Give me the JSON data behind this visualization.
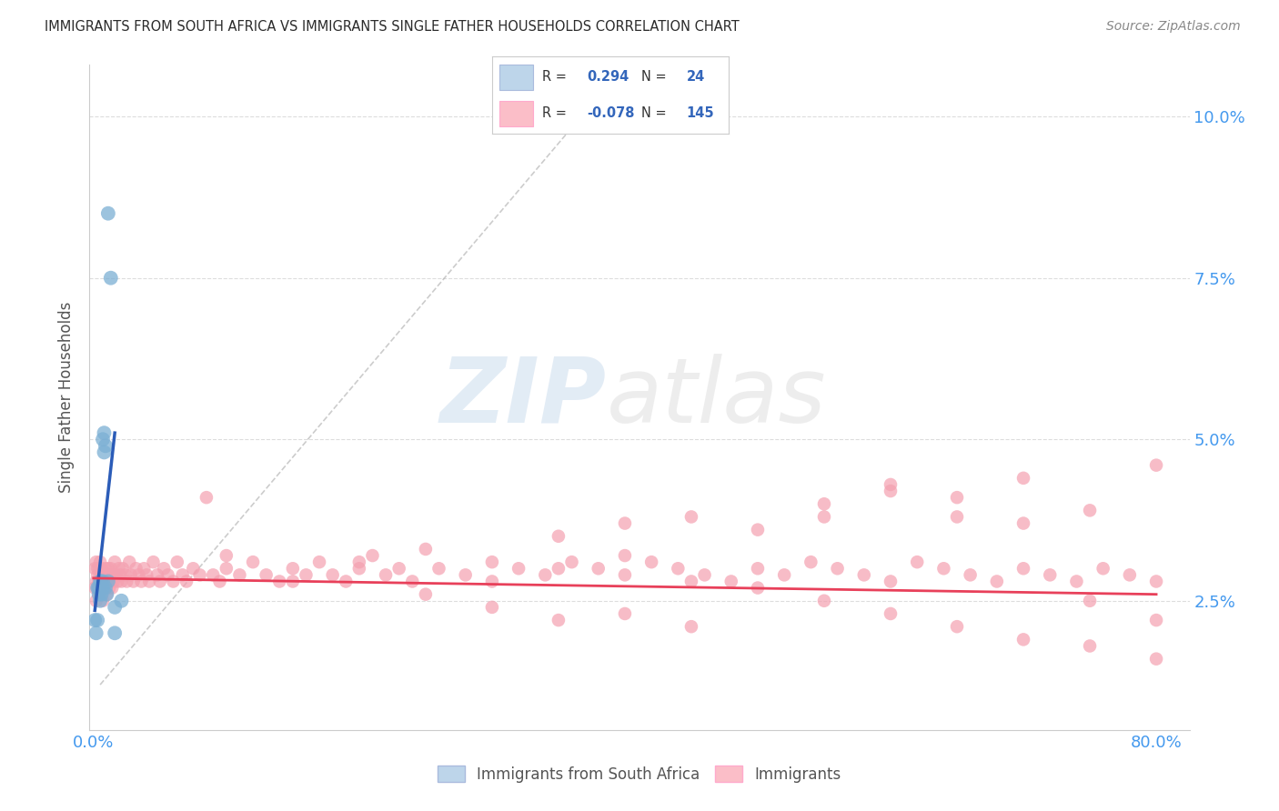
{
  "title": "IMMIGRANTS FROM SOUTH AFRICA VS IMMIGRANTS SINGLE FATHER HOUSEHOLDS CORRELATION CHART",
  "source": "Source: ZipAtlas.com",
  "ylabel": "Single Father Households",
  "blue_R": 0.294,
  "blue_N": 24,
  "pink_R": -0.078,
  "pink_N": 145,
  "blue_dot_color": "#7BAFD4",
  "pink_dot_color": "#F4A0B0",
  "blue_legend_color": "#BDD5EA",
  "pink_legend_color": "#FBBEC8",
  "trend_blue_color": "#2B5CB8",
  "trend_pink_color": "#E8405A",
  "title_color": "#2B2B2B",
  "axis_color": "#4499EE",
  "legend_text_color": "#3366BB",
  "xlim": [
    -0.003,
    0.825
  ],
  "ylim": [
    0.005,
    0.108
  ],
  "ytick_vals": [
    0.025,
    0.05,
    0.075,
    0.1
  ],
  "ytick_labels": [
    "2.5%",
    "5.0%",
    "7.5%",
    "10.0%"
  ],
  "xtick_vals": [
    0.0,
    0.1,
    0.2,
    0.3,
    0.4,
    0.5,
    0.6,
    0.7,
    0.8
  ],
  "blue_x": [
    0.001,
    0.002,
    0.003,
    0.003,
    0.004,
    0.004,
    0.005,
    0.005,
    0.006,
    0.006,
    0.007,
    0.007,
    0.007,
    0.008,
    0.008,
    0.009,
    0.009,
    0.01,
    0.011,
    0.011,
    0.013,
    0.016,
    0.016,
    0.021
  ],
  "blue_y": [
    0.022,
    0.02,
    0.027,
    0.022,
    0.026,
    0.027,
    0.025,
    0.028,
    0.026,
    0.028,
    0.027,
    0.028,
    0.05,
    0.048,
    0.051,
    0.049,
    0.027,
    0.026,
    0.028,
    0.085,
    0.075,
    0.024,
    0.02,
    0.025
  ],
  "pink_x": [
    0.001,
    0.001,
    0.002,
    0.002,
    0.002,
    0.003,
    0.003,
    0.003,
    0.004,
    0.004,
    0.004,
    0.005,
    0.005,
    0.005,
    0.006,
    0.006,
    0.006,
    0.007,
    0.007,
    0.008,
    0.008,
    0.009,
    0.009,
    0.01,
    0.01,
    0.011,
    0.011,
    0.012,
    0.012,
    0.013,
    0.013,
    0.014,
    0.015,
    0.015,
    0.016,
    0.017,
    0.018,
    0.019,
    0.02,
    0.021,
    0.022,
    0.024,
    0.025,
    0.027,
    0.028,
    0.03,
    0.032,
    0.034,
    0.036,
    0.038,
    0.04,
    0.042,
    0.045,
    0.048,
    0.05,
    0.053,
    0.056,
    0.06,
    0.063,
    0.067,
    0.07,
    0.075,
    0.08,
    0.085,
    0.09,
    0.095,
    0.1,
    0.11,
    0.12,
    0.13,
    0.14,
    0.15,
    0.16,
    0.17,
    0.18,
    0.19,
    0.2,
    0.21,
    0.22,
    0.23,
    0.24,
    0.26,
    0.28,
    0.3,
    0.32,
    0.34,
    0.36,
    0.38,
    0.4,
    0.42,
    0.44,
    0.46,
    0.48,
    0.5,
    0.52,
    0.54,
    0.56,
    0.58,
    0.6,
    0.62,
    0.64,
    0.66,
    0.68,
    0.7,
    0.72,
    0.74,
    0.76,
    0.78,
    0.8,
    0.55,
    0.6,
    0.65,
    0.7,
    0.75,
    0.8,
    0.35,
    0.4,
    0.45,
    0.5,
    0.55,
    0.6,
    0.65,
    0.7,
    0.75,
    0.8,
    0.25,
    0.3,
    0.35,
    0.4,
    0.45,
    0.5,
    0.55,
    0.6,
    0.65,
    0.7,
    0.75,
    0.8,
    0.1,
    0.15,
    0.2,
    0.25,
    0.3,
    0.35,
    0.4,
    0.45
  ],
  "pink_y": [
    0.03,
    0.027,
    0.031,
    0.028,
    0.025,
    0.029,
    0.027,
    0.03,
    0.028,
    0.026,
    0.03,
    0.029,
    0.027,
    0.031,
    0.028,
    0.026,
    0.03,
    0.028,
    0.025,
    0.029,
    0.027,
    0.03,
    0.028,
    0.029,
    0.026,
    0.028,
    0.03,
    0.027,
    0.029,
    0.028,
    0.03,
    0.027,
    0.029,
    0.028,
    0.031,
    0.029,
    0.028,
    0.03,
    0.029,
    0.028,
    0.03,
    0.029,
    0.028,
    0.031,
    0.029,
    0.028,
    0.03,
    0.029,
    0.028,
    0.03,
    0.029,
    0.028,
    0.031,
    0.029,
    0.028,
    0.03,
    0.029,
    0.028,
    0.031,
    0.029,
    0.028,
    0.03,
    0.029,
    0.041,
    0.029,
    0.028,
    0.03,
    0.029,
    0.031,
    0.029,
    0.028,
    0.03,
    0.029,
    0.031,
    0.029,
    0.028,
    0.03,
    0.032,
    0.029,
    0.03,
    0.028,
    0.03,
    0.029,
    0.028,
    0.03,
    0.029,
    0.031,
    0.03,
    0.029,
    0.031,
    0.03,
    0.029,
    0.028,
    0.03,
    0.029,
    0.031,
    0.03,
    0.029,
    0.028,
    0.031,
    0.03,
    0.029,
    0.028,
    0.03,
    0.029,
    0.028,
    0.03,
    0.029,
    0.028,
    0.038,
    0.043,
    0.041,
    0.044,
    0.039,
    0.046,
    0.035,
    0.037,
    0.038,
    0.036,
    0.04,
    0.042,
    0.038,
    0.037,
    0.025,
    0.022,
    0.033,
    0.031,
    0.03,
    0.032,
    0.028,
    0.027,
    0.025,
    0.023,
    0.021,
    0.019,
    0.018,
    0.016,
    0.032,
    0.028,
    0.031,
    0.026,
    0.024,
    0.022,
    0.023,
    0.021
  ]
}
